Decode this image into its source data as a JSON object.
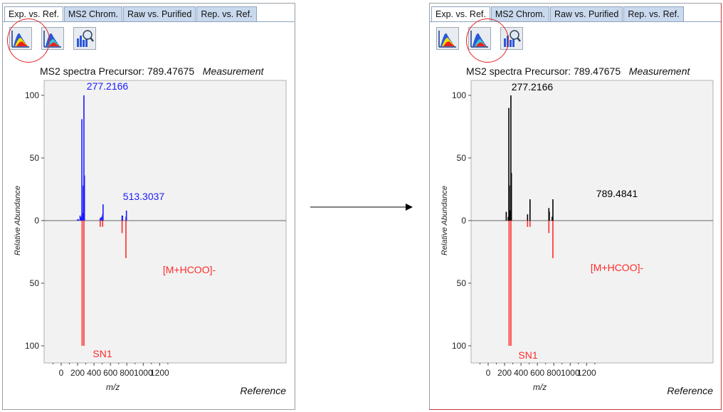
{
  "tabs": [
    "Exp. vs. Ref.",
    "MS2 Chrom.",
    "Raw vs. Purified",
    "Rep. vs. Ref."
  ],
  "icons": [
    "spectrum-color-icon",
    "spectrum-blue-icon",
    "bar-chart-zoom-icon"
  ],
  "colors": {
    "accent_blue": "#1a1aff",
    "reference_red": "#ff2a2a",
    "black_peaks": "#000000",
    "highlight_circle": "#e02424"
  },
  "left": {
    "selected_icon_index": 0,
    "title_main": "MS2 spectra Precursor: 789.47675",
    "title_measure": "Measurement",
    "footer_ref": "Reference",
    "top_label": "277.2166",
    "mid_label": "513.3037",
    "ref_label_1": "[M+HCOO]-",
    "ref_label_2": "SN1",
    "xlabel": "m/z",
    "ylabel": "Relative Abundance",
    "xticks": [
      "0",
      "200",
      "400",
      "600",
      "800",
      "1000",
      "1200"
    ],
    "yticks_top": [
      "100",
      "50",
      "0"
    ],
    "yticks_bottom": [
      "50",
      "100"
    ]
  },
  "right": {
    "selected_icon_index": 1,
    "title_main": "MS2 spectra Precursor: 789.47675",
    "title_measure": "Measurement",
    "footer_ref": "Reference",
    "top_label": "277.2166",
    "mid_label": "789.4841",
    "ref_label_1": "[M+HCOO]-",
    "ref_label_2": "SN1",
    "xlabel": "m/z",
    "ylabel": "Relative Abundance",
    "xticks": [
      "0",
      "200",
      "400",
      "600",
      "800",
      "1000",
      "1200"
    ],
    "yticks_top": [
      "100",
      "50",
      "0"
    ],
    "yticks_bottom": [
      "50",
      "100"
    ]
  },
  "chart_data": [
    {
      "type": "bar",
      "title": "MS2 spectra Precursor: 789.47675",
      "xlabel": "m/z",
      "ylabel": "Relative Abundance",
      "xlim": [
        -80,
        1390
      ],
      "ylim": [
        -100,
        100
      ],
      "series": [
        {
          "name": "Measurement",
          "color": "#1a1aff",
          "x": [
            200,
            210,
            230,
            235,
            245,
            252,
            258,
            265,
            270,
            277,
            283,
            475,
            490,
            505,
            510,
            742,
            747,
            790,
            795
          ],
          "values": [
            1,
            1,
            4,
            2,
            3,
            81,
            5,
            6,
            28,
            100,
            36,
            2,
            3,
            5,
            13,
            4,
            4,
            3,
            8
          ]
        },
        {
          "name": "Reference",
          "color": "#ff2a2a",
          "x": [
            255,
            277,
            475,
            505,
            742,
            789
          ],
          "values": [
            -100,
            -100,
            -5,
            -5,
            -10,
            -30
          ]
        }
      ]
    },
    {
      "type": "bar",
      "title": "MS2 spectra Precursor: 789.47675",
      "xlabel": "m/z",
      "ylabel": "Relative Abundance",
      "xlim": [
        -80,
        1390
      ],
      "ylim": [
        -100,
        100
      ],
      "series": [
        {
          "name": "Measurement",
          "color": "#000000",
          "x": [
            220,
            245,
            252,
            258,
            265,
            270,
            277,
            283,
            480,
            510,
            740,
            745,
            780,
            789
          ],
          "values": [
            7,
            3,
            90,
            28,
            6,
            8,
            100,
            38,
            5,
            17,
            10,
            7,
            3,
            17
          ]
        },
        {
          "name": "Reference",
          "color": "#ff2a2a",
          "x": [
            255,
            277,
            480,
            510,
            740,
            789
          ],
          "values": [
            -100,
            -100,
            -5,
            -5,
            -10,
            -30
          ]
        }
      ]
    }
  ]
}
